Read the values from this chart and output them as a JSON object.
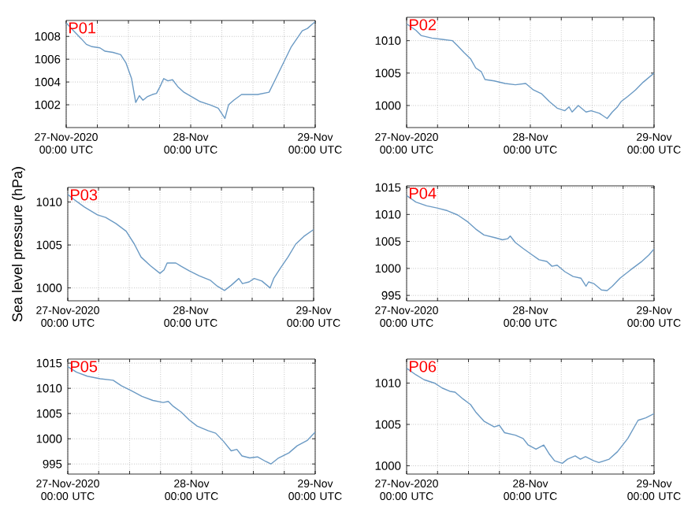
{
  "chart_data": [
    {
      "type": "line",
      "title": "P01",
      "color": "#6b9ac4",
      "grid": true,
      "xlim": [
        "2020-11-27T00:00",
        "2020-11-29T00:00"
      ],
      "ylim": [
        1000,
        1009.4
      ],
      "xticks": [
        {
          "value": "2020-11-27T00:00",
          "label": "27-Nov-2020 00:00 UTC"
        },
        {
          "value": "2020-11-27T06:00",
          "label": null
        },
        {
          "value": "2020-11-27T12:00",
          "label": null
        },
        {
          "value": "2020-11-27T18:00",
          "label": null
        },
        {
          "value": "2020-11-28T00:00",
          "label": "28-Nov 00:00 UTC"
        },
        {
          "value": "2020-11-28T06:00",
          "label": null
        },
        {
          "value": "2020-11-28T12:00",
          "label": null
        },
        {
          "value": "2020-11-28T18:00",
          "label": null
        },
        {
          "value": "2020-11-29T00:00",
          "label": "29-Nov 00:00 UTC"
        }
      ],
      "yticks": [
        1002,
        1004,
        1006,
        1008
      ],
      "x": [
        "2020-11-27T00:00",
        "2020-11-27T01:24",
        "2020-11-27T02:54",
        "2020-11-27T03:54",
        "2020-11-27T05:00",
        "2020-11-27T06:30",
        "2020-11-27T07:30",
        "2020-11-27T09:00",
        "2020-11-27T10:30",
        "2020-11-27T11:30",
        "2020-11-27T12:36",
        "2020-11-27T13:24",
        "2020-11-27T14:06",
        "2020-11-27T14:48",
        "2020-11-27T15:36",
        "2020-11-27T16:36",
        "2020-11-27T17:24",
        "2020-11-27T18:06",
        "2020-11-27T18:48",
        "2020-11-27T19:36",
        "2020-11-27T20:30",
        "2020-11-27T21:30",
        "2020-11-27T22:42",
        "2020-11-28T00:12",
        "2020-11-28T01:42",
        "2020-11-28T03:42",
        "2020-11-28T05:18",
        "2020-11-28T06:36",
        "2020-11-28T07:18",
        "2020-11-28T08:18",
        "2020-11-28T09:48",
        "2020-11-28T11:18",
        "2020-11-28T12:54",
        "2020-11-28T15:06",
        "2020-11-28T16:24",
        "2020-11-28T17:54",
        "2020-11-28T19:24",
        "2020-11-28T21:30",
        "2020-11-28T22:30",
        "2020-11-29T00:00"
      ],
      "values": [
        1009.2,
        1008.5,
        1007.8,
        1007.3,
        1007.1,
        1007.0,
        1006.7,
        1006.6,
        1006.4,
        1005.7,
        1004.3,
        1002.2,
        1002.8,
        1002.4,
        1002.7,
        1002.9,
        1003.0,
        1003.6,
        1004.3,
        1004.1,
        1004.2,
        1003.6,
        1003.1,
        1002.7,
        1002.3,
        1002.0,
        1001.7,
        1000.8,
        1002.0,
        1002.4,
        1002.9,
        1002.9,
        1002.9,
        1003.1,
        1004.3,
        1005.7,
        1007.1,
        1008.5,
        1008.7,
        1009.3
      ]
    },
    {
      "type": "line",
      "title": "P02",
      "color": "#6b9ac4",
      "grid": true,
      "xlim": [
        "2020-11-27T00:00",
        "2020-11-29T00:00"
      ],
      "ylim": [
        996.6,
        1013.6
      ],
      "xticks": [
        {
          "value": "2020-11-27T00:00",
          "label": "27-Nov-2020 00:00 UTC"
        },
        {
          "value": "2020-11-27T06:00",
          "label": null
        },
        {
          "value": "2020-11-27T12:00",
          "label": null
        },
        {
          "value": "2020-11-27T18:00",
          "label": null
        },
        {
          "value": "2020-11-28T00:00",
          "label": "28-Nov 00:00 UTC"
        },
        {
          "value": "2020-11-28T06:00",
          "label": null
        },
        {
          "value": "2020-11-28T12:00",
          "label": null
        },
        {
          "value": "2020-11-28T18:00",
          "label": null
        },
        {
          "value": "2020-11-29T00:00",
          "label": "29-Nov 00:00 UTC"
        }
      ],
      "yticks": [
        1000,
        1005,
        1010
      ],
      "x": [
        "2020-11-27T00:00",
        "2020-11-27T01:48",
        "2020-11-27T02:48",
        "2020-11-27T04:54",
        "2020-11-27T06:54",
        "2020-11-27T08:54",
        "2020-11-27T09:54",
        "2020-11-27T11:06",
        "2020-11-27T12:24",
        "2020-11-27T13:24",
        "2020-11-27T14:30",
        "2020-11-27T15:12",
        "2020-11-27T17:00",
        "2020-11-27T19:06",
        "2020-11-27T21:06",
        "2020-11-27T23:06",
        "2020-11-28T00:36",
        "2020-11-28T02:12",
        "2020-11-28T03:42",
        "2020-11-28T05:12",
        "2020-11-28T06:42",
        "2020-11-28T07:30",
        "2020-11-28T08:06",
        "2020-11-28T09:18",
        "2020-11-28T10:48",
        "2020-11-28T11:48",
        "2020-11-28T13:24",
        "2020-11-28T14:54",
        "2020-11-28T15:54",
        "2020-11-28T16:54",
        "2020-11-28T17:36",
        "2020-11-28T18:54",
        "2020-11-28T20:24",
        "2020-11-28T21:54",
        "2020-11-29T00:00"
      ],
      "values": [
        1012.6,
        1011.6,
        1010.8,
        1010.4,
        1010.2,
        1010.0,
        1009.2,
        1008.2,
        1007.2,
        1005.8,
        1005.2,
        1004.0,
        1003.8,
        1003.4,
        1003.2,
        1003.4,
        1002.4,
        1001.8,
        1000.6,
        999.6,
        999.2,
        999.8,
        999.0,
        1000.0,
        999.0,
        999.2,
        998.8,
        998.0,
        999.0,
        999.8,
        1000.6,
        1001.4,
        1002.4,
        1003.6,
        1005.0
      ]
    },
    {
      "type": "line",
      "title": "P03",
      "ylabel": "Sea level pressure (hPa)",
      "color": "#6b9ac4",
      "grid": true,
      "xlim": [
        "2020-11-27T00:00",
        "2020-11-29T00:00"
      ],
      "ylim": [
        998.5,
        1011.7
      ],
      "xticks": [
        {
          "value": "2020-11-27T00:00",
          "label": "27-Nov-2020 00:00 UTC"
        },
        {
          "value": "2020-11-27T06:00",
          "label": null
        },
        {
          "value": "2020-11-27T12:00",
          "label": null
        },
        {
          "value": "2020-11-27T18:00",
          "label": null
        },
        {
          "value": "2020-11-28T00:00",
          "label": "28-Nov 00:00 UTC"
        },
        {
          "value": "2020-11-28T06:00",
          "label": null
        },
        {
          "value": "2020-11-28T12:00",
          "label": null
        },
        {
          "value": "2020-11-28T18:00",
          "label": null
        },
        {
          "value": "2020-11-29T00:00",
          "label": "29-Nov 00:00 UTC"
        }
      ],
      "yticks": [
        1000,
        1005,
        1010
      ],
      "x": [
        "2020-11-27T00:00",
        "2020-11-27T01:12",
        "2020-11-27T03:18",
        "2020-11-27T05:48",
        "2020-11-27T07:24",
        "2020-11-27T09:24",
        "2020-11-27T11:24",
        "2020-11-27T13:00",
        "2020-11-27T14:18",
        "2020-11-27T16:06",
        "2020-11-27T18:00",
        "2020-11-27T18:48",
        "2020-11-27T19:24",
        "2020-11-27T21:06",
        "2020-11-27T22:12",
        "2020-11-27T23:42",
        "2020-11-28T01:42",
        "2020-11-28T03:48",
        "2020-11-28T05:12",
        "2020-11-28T06:36",
        "2020-11-28T07:54",
        "2020-11-28T09:24",
        "2020-11-28T10:06",
        "2020-11-28T11:24",
        "2020-11-28T12:24",
        "2020-11-28T13:54",
        "2020-11-28T15:30",
        "2020-11-28T16:12",
        "2020-11-28T17:30",
        "2020-11-28T19:00",
        "2020-11-28T20:30",
        "2020-11-28T22:06",
        "2020-11-29T00:00"
      ],
      "values": [
        1010.9,
        1010.3,
        1009.4,
        1008.5,
        1008.2,
        1007.5,
        1006.6,
        1005.1,
        1003.6,
        1002.6,
        1001.7,
        1002.1,
        1002.9,
        1002.9,
        1002.5,
        1002.0,
        1001.4,
        1000.9,
        1000.2,
        999.7,
        1000.3,
        1001.1,
        1000.5,
        1000.7,
        1001.1,
        1000.8,
        1000.0,
        1001.1,
        1002.3,
        1003.6,
        1005.1,
        1006.0,
        1006.8
      ]
    },
    {
      "type": "line",
      "title": "P04",
      "color": "#6b9ac4",
      "grid": true,
      "xlim": [
        "2020-11-27T00:00",
        "2020-11-29T00:00"
      ],
      "ylim": [
        994,
        1015.3
      ],
      "xticks": [
        {
          "value": "2020-11-27T00:00",
          "label": "27-Nov-2020 00:00 UTC"
        },
        {
          "value": "2020-11-27T06:00",
          "label": null
        },
        {
          "value": "2020-11-27T12:00",
          "label": null
        },
        {
          "value": "2020-11-27T18:00",
          "label": null
        },
        {
          "value": "2020-11-28T00:00",
          "label": "28-Nov 00:00 UTC"
        },
        {
          "value": "2020-11-28T06:00",
          "label": null
        },
        {
          "value": "2020-11-28T12:00",
          "label": null
        },
        {
          "value": "2020-11-28T18:00",
          "label": null
        },
        {
          "value": "2020-11-29T00:00",
          "label": "29-Nov 00:00 UTC"
        }
      ],
      "yticks": [
        995,
        1000,
        1005,
        1010,
        1015
      ],
      "x": [
        "2020-11-27T00:00",
        "2020-11-27T01:48",
        "2020-11-27T03:54",
        "2020-11-27T05:54",
        "2020-11-27T07:54",
        "2020-11-27T09:54",
        "2020-11-27T11:54",
        "2020-11-27T13:24",
        "2020-11-27T15:00",
        "2020-11-27T17:06",
        "2020-11-27T18:36",
        "2020-11-27T19:36",
        "2020-11-27T20:06",
        "2020-11-27T21:06",
        "2020-11-27T22:36",
        "2020-11-28T00:12",
        "2020-11-28T01:42",
        "2020-11-28T03:12",
        "2020-11-28T04:12",
        "2020-11-28T05:12",
        "2020-11-28T06:42",
        "2020-11-28T08:18",
        "2020-11-28T09:48",
        "2020-11-28T10:48",
        "2020-11-28T11:18",
        "2020-11-28T12:18",
        "2020-11-28T13:48",
        "2020-11-28T14:54",
        "2020-11-28T15:54",
        "2020-11-28T17:24",
        "2020-11-28T19:24",
        "2020-11-28T21:30",
        "2020-11-28T23:00",
        "2020-11-29T00:00"
      ],
      "values": [
        1013.5,
        1012.3,
        1011.6,
        1011.2,
        1010.7,
        1009.9,
        1008.6,
        1007.3,
        1006.2,
        1005.7,
        1005.3,
        1005.5,
        1006.0,
        1004.8,
        1003.7,
        1002.6,
        1001.6,
        1001.3,
        1000.4,
        1000.6,
        999.4,
        998.5,
        998.2,
        996.7,
        997.5,
        997.2,
        996.0,
        995.9,
        996.7,
        998.2,
        999.7,
        1001.2,
        1002.5,
        1003.6
      ]
    },
    {
      "type": "line",
      "title": "P05",
      "color": "#6b9ac4",
      "grid": true,
      "xlim": [
        "2020-11-27T00:00",
        "2020-11-29T00:00"
      ],
      "ylim": [
        993,
        1015.8
      ],
      "xticks": [
        {
          "value": "2020-11-27T00:00",
          "label": "27-Nov-2020 00:00 UTC"
        },
        {
          "value": "2020-11-27T06:00",
          "label": null
        },
        {
          "value": "2020-11-27T12:00",
          "label": null
        },
        {
          "value": "2020-11-27T18:00",
          "label": null
        },
        {
          "value": "2020-11-28T00:00",
          "label": "28-Nov 00:00 UTC"
        },
        {
          "value": "2020-11-28T06:00",
          "label": null
        },
        {
          "value": "2020-11-28T12:00",
          "label": null
        },
        {
          "value": "2020-11-28T18:00",
          "label": null
        },
        {
          "value": "2020-11-29T00:00",
          "label": "29-Nov 00:00 UTC"
        }
      ],
      "yticks": [
        995,
        1000,
        1005,
        1010,
        1015
      ],
      "x": [
        "2020-11-27T00:00",
        "2020-11-27T01:42",
        "2020-11-27T03:48",
        "2020-11-27T06:18",
        "2020-11-27T08:48",
        "2020-11-27T10:24",
        "2020-11-27T12:24",
        "2020-11-27T14:24",
        "2020-11-27T16:30",
        "2020-11-27T18:30",
        "2020-11-27T19:30",
        "2020-11-27T20:30",
        "2020-11-27T22:00",
        "2020-11-27T23:36",
        "2020-11-28T01:06",
        "2020-11-28T03:12",
        "2020-11-28T04:42",
        "2020-11-28T06:12",
        "2020-11-28T07:42",
        "2020-11-28T08:48",
        "2020-11-28T09:48",
        "2020-11-28T11:18",
        "2020-11-28T12:48",
        "2020-11-28T14:24",
        "2020-11-28T15:24",
        "2020-11-28T16:54",
        "2020-11-28T18:54",
        "2020-11-28T20:30",
        "2020-11-28T22:30",
        "2020-11-29T00:00"
      ],
      "values": [
        1014.3,
        1013.2,
        1012.4,
        1011.9,
        1011.6,
        1010.5,
        1009.5,
        1008.4,
        1007.6,
        1007.2,
        1007.4,
        1006.4,
        1005.3,
        1003.7,
        1002.5,
        1001.6,
        1001.1,
        999.5,
        997.6,
        997.9,
        996.6,
        996.2,
        996.4,
        995.5,
        995.0,
        996.2,
        997.2,
        998.6,
        999.7,
        1001.3
      ]
    },
    {
      "type": "line",
      "title": "P06",
      "color": "#6b9ac4",
      "grid": true,
      "xlim": [
        "2020-11-27T00:00",
        "2020-11-29T00:00"
      ],
      "ylim": [
        999,
        1012.9
      ],
      "xticks": [
        {
          "value": "2020-11-27T00:00",
          "label": "27-Nov-2020 00:00 UTC"
        },
        {
          "value": "2020-11-27T06:00",
          "label": null
        },
        {
          "value": "2020-11-27T12:00",
          "label": null
        },
        {
          "value": "2020-11-27T18:00",
          "label": null
        },
        {
          "value": "2020-11-28T00:00",
          "label": "28-Nov 00:00 UTC"
        },
        {
          "value": "2020-11-28T06:00",
          "label": null
        },
        {
          "value": "2020-11-28T12:00",
          "label": null
        },
        {
          "value": "2020-11-28T18:00",
          "label": null
        },
        {
          "value": "2020-11-29T00:00",
          "label": "29-Nov 00:00 UTC"
        }
      ],
      "yticks": [
        1000,
        1005,
        1010
      ],
      "x": [
        "2020-11-27T00:00",
        "2020-11-27T01:48",
        "2020-11-27T03:24",
        "2020-11-27T05:24",
        "2020-11-27T06:54",
        "2020-11-27T08:24",
        "2020-11-27T09:24",
        "2020-11-27T10:54",
        "2020-11-27T12:24",
        "2020-11-27T13:24",
        "2020-11-27T15:00",
        "2020-11-27T17:00",
        "2020-11-27T18:00",
        "2020-11-27T19:00",
        "2020-11-27T21:06",
        "2020-11-27T22:36",
        "2020-11-27T23:36",
        "2020-11-28T01:06",
        "2020-11-28T02:36",
        "2020-11-28T03:42",
        "2020-11-28T04:42",
        "2020-11-28T06:12",
        "2020-11-28T07:12",
        "2020-11-28T08:42",
        "2020-11-28T09:42",
        "2020-11-28T10:42",
        "2020-11-28T12:18",
        "2020-11-28T13:18",
        "2020-11-28T15:18",
        "2020-11-28T16:54",
        "2020-11-28T18:54",
        "2020-11-28T20:54",
        "2020-11-28T22:24",
        "2020-11-29T00:00"
      ],
      "values": [
        1011.8,
        1011.0,
        1010.4,
        1010.0,
        1009.4,
        1009.0,
        1008.9,
        1008.1,
        1007.4,
        1006.5,
        1005.4,
        1004.7,
        1004.9,
        1004.0,
        1003.7,
        1003.3,
        1002.5,
        1002.0,
        1002.5,
        1001.4,
        1000.6,
        1000.3,
        1000.8,
        1001.2,
        1000.8,
        1001.1,
        1000.6,
        1000.4,
        1000.8,
        1001.7,
        1003.3,
        1005.5,
        1005.8,
        1006.3
      ]
    }
  ]
}
